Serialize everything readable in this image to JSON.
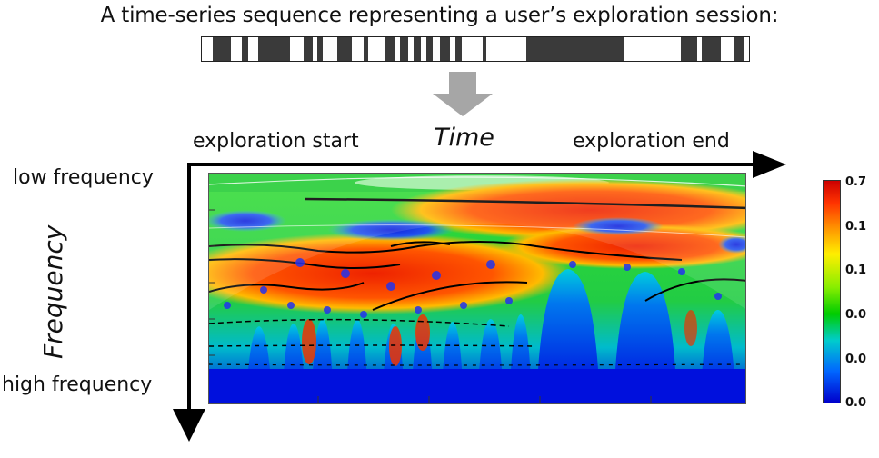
{
  "title": "A time-series sequence representing a user’s exploration session:",
  "axis": {
    "time_label": "Time",
    "start_label": "exploration start",
    "end_label": "exploration end",
    "frequency_label": "Frequency",
    "low_label": "low frequency",
    "high_label": "high frequency"
  },
  "colorbar": {
    "ticks": [
      "0.7",
      "0.1",
      "0.1",
      "0.0",
      "0.0",
      "0.0"
    ]
  },
  "colors": {
    "sequence_block": "#3a3a3a",
    "arrow_gray": "#a6a6a6",
    "axis": "#000000"
  }
}
